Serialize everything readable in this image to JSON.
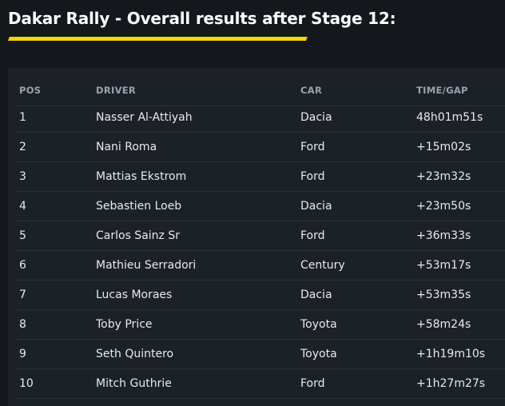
{
  "title": "Dakar Rally - Overall results after Stage 12:",
  "colors": {
    "background": "#14171c",
    "panel": "#1c2128",
    "accent": "#f2d600",
    "divider": "#2b323b",
    "header_text": "#9aa3ad"
  },
  "table": {
    "headers": {
      "pos": "POS",
      "driver": "DRIVER",
      "car": "CAR",
      "time": "TIME/GAP"
    },
    "rows": [
      {
        "pos": "1",
        "driver": "Nasser Al-Attiyah",
        "car": "Dacia",
        "time": "48h01m51s"
      },
      {
        "pos": "2",
        "driver": "Nani Roma",
        "car": "Ford",
        "time": "+15m02s"
      },
      {
        "pos": "3",
        "driver": "Mattias Ekstrom",
        "car": "Ford",
        "time": "+23m32s"
      },
      {
        "pos": "4",
        "driver": "Sebastien Loeb",
        "car": "Dacia",
        "time": "+23m50s"
      },
      {
        "pos": "5",
        "driver": "Carlos Sainz Sr",
        "car": "Ford",
        "time": "+36m33s"
      },
      {
        "pos": "6",
        "driver": "Mathieu Serradori",
        "car": "Century",
        "time": "+53m17s"
      },
      {
        "pos": "7",
        "driver": "Lucas Moraes",
        "car": "Dacia",
        "time": "+53m35s"
      },
      {
        "pos": "8",
        "driver": "Toby Price",
        "car": "Toyota",
        "time": "+58m24s"
      },
      {
        "pos": "9",
        "driver": "Seth Quintero",
        "car": "Toyota",
        "time": "+1h19m10s"
      },
      {
        "pos": "10",
        "driver": "Mitch Guthrie",
        "car": "Ford",
        "time": "+1h27m27s"
      }
    ]
  }
}
